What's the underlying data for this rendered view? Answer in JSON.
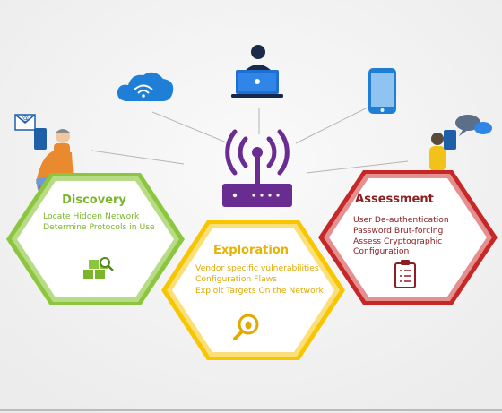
{
  "colors": {
    "background": "#f2f2f2",
    "discovery": "#8cc63f",
    "exploration": "#f7c600",
    "assessment": "#c62828",
    "router": "#6a2c91",
    "device_blue": "#1f7fd6"
  },
  "icons": [
    "cloud-wifi-icon",
    "user-laptop-icon",
    "smartphone-icon",
    "email-icon",
    "person-tablet-icon",
    "chat-icon",
    "wifi-router-icon",
    "blocks-search-icon",
    "bug-search-icon",
    "clipboard-checklist-icon"
  ],
  "discovery": {
    "title": "Discovery",
    "items": [
      "Locate Hidden Network",
      "Determine Protocols in Use"
    ]
  },
  "exploration": {
    "title": "Exploration",
    "items": [
      "Vendor specific vulnerabilities",
      "Configuration Flaws",
      "Exploit Targets On the Network"
    ]
  },
  "assessment": {
    "title": "Assessment",
    "items": [
      "User De-authentication",
      "Password Brut-forcing",
      "Assess Cryptographic",
      "Configuration"
    ]
  }
}
